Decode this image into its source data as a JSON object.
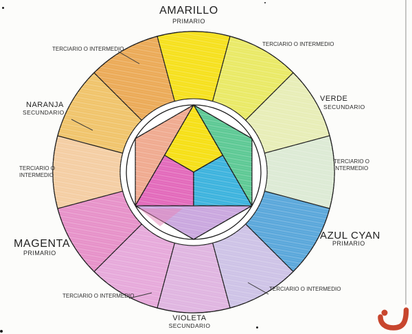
{
  "wheel": {
    "tertiary_label": "TERCIARIO O INTERMEDIO",
    "labels": {
      "amarillo": {
        "name": "AMARILLO",
        "type": "PRIMARIO"
      },
      "verde": {
        "name": "VERDE",
        "type": "SECUNDARIO"
      },
      "azul_cyan": {
        "name": "AZUL CYAN",
        "type": "PRIMARIO"
      },
      "violeta": {
        "name": "VIOLETA",
        "type": "SECUNDARIO"
      },
      "magenta": {
        "name": "MAGENTA",
        "type": "PRIMARIO"
      },
      "naranja": {
        "name": "NARANJA",
        "type": "SECUNDARIO"
      }
    },
    "ring_sectors": [
      {
        "name": "amarillo-primario",
        "center_angle": 90,
        "color": "#f6e01a"
      },
      {
        "name": "terciario-amarillo-verde",
        "center_angle": 60,
        "color": "#e9e964"
      },
      {
        "name": "verde-secundario",
        "center_angle": 30,
        "color": "#e7edb6"
      },
      {
        "name": "terciario-verde-azul",
        "center_angle": 0,
        "color": "#dcead4"
      },
      {
        "name": "azul-cyan-primario",
        "center_angle": -30,
        "color": "#58a6da"
      },
      {
        "name": "terciario-azul-violeta",
        "center_angle": -60,
        "color": "#cdc2e6"
      },
      {
        "name": "violeta-secundario",
        "center_angle": -90,
        "color": "#dfb4e0"
      },
      {
        "name": "terciario-violeta-magenta",
        "center_angle": -120,
        "color": "#e6a8da"
      },
      {
        "name": "magenta-primario",
        "center_angle": -150,
        "color": "#e690c8"
      },
      {
        "name": "terciario-magenta-naranja",
        "center_angle": 180,
        "color": "#f4cda2"
      },
      {
        "name": "naranja-secundario",
        "center_angle": 150,
        "color": "#f0c369"
      },
      {
        "name": "terciario-naranja-amarillo",
        "center_angle": 120,
        "color": "#eba955"
      }
    ],
    "inner_shapes": {
      "yellow_kite": "#f6df12",
      "magenta_kite": "#e268ba",
      "cyan_kite": "#3ab2dd",
      "orange_triangle": "#efa98e",
      "green_triangle": "#5bc893",
      "violet_triangle": "#c9a6de",
      "violet_pink_patch": "#e583b8"
    },
    "outline_color": "#1c1c1c"
  },
  "artifacts": {
    "corner_mark_color": "#c8462e"
  }
}
